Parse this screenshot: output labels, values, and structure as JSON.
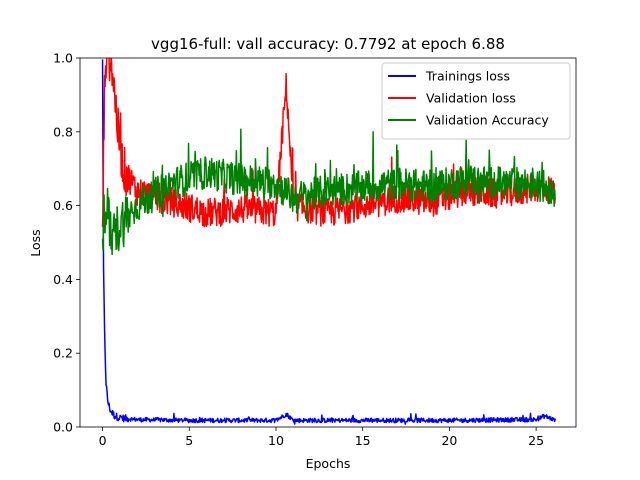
{
  "chart_data": {
    "type": "line",
    "title": "vgg16-full: vall accuracy: 0.7792 at epoch 6.88",
    "xlabel": "Epochs",
    "ylabel": "Loss",
    "xlim": [
      -1.3,
      27.3
    ],
    "ylim": [
      0.0,
      1.0
    ],
    "xticks": [
      0,
      5,
      10,
      15,
      20,
      25
    ],
    "yticks": [
      0.0,
      0.2,
      0.4,
      0.6,
      0.8,
      1.0
    ],
    "xtick_labels": [
      "0",
      "5",
      "10",
      "15",
      "20",
      "25"
    ],
    "ytick_labels": [
      "0.0",
      "0.2",
      "0.4",
      "0.6",
      "0.8",
      "1.0"
    ],
    "grid": false,
    "legend_position": "top-right",
    "x_max": 26.1,
    "series": [
      {
        "name": "Trainings loss",
        "color": "#0000ff",
        "keypoints": [
          [
            0.0,
            1.0
          ],
          [
            0.05,
            0.45
          ],
          [
            0.12,
            0.25
          ],
          [
            0.2,
            0.12
          ],
          [
            0.3,
            0.07
          ],
          [
            0.45,
            0.045
          ],
          [
            0.7,
            0.03
          ],
          [
            1.0,
            0.025
          ],
          [
            2.0,
            0.02
          ],
          [
            5.0,
            0.018
          ],
          [
            10.0,
            0.018
          ],
          [
            10.6,
            0.035
          ],
          [
            11.0,
            0.018
          ],
          [
            15.0,
            0.018
          ],
          [
            20.0,
            0.018
          ],
          [
            25.0,
            0.02
          ],
          [
            25.5,
            0.03
          ],
          [
            26.1,
            0.018
          ]
        ],
        "noise": 0.006
      },
      {
        "name": "Validation loss",
        "color": "#ff0000",
        "keypoints": [
          [
            0.0,
            0.55
          ],
          [
            0.15,
            1.0
          ],
          [
            0.5,
            1.0
          ],
          [
            0.9,
            0.8
          ],
          [
            1.2,
            0.7
          ],
          [
            2.0,
            0.64
          ],
          [
            4.0,
            0.61
          ],
          [
            6.0,
            0.58
          ],
          [
            8.0,
            0.59
          ],
          [
            10.0,
            0.58
          ],
          [
            10.6,
            0.93
          ],
          [
            11.0,
            0.6
          ],
          [
            13.0,
            0.58
          ],
          [
            15.0,
            0.6
          ],
          [
            17.0,
            0.62
          ],
          [
            19.0,
            0.61
          ],
          [
            21.0,
            0.64
          ],
          [
            23.0,
            0.63
          ],
          [
            25.0,
            0.65
          ],
          [
            26.1,
            0.64
          ]
        ],
        "noise": 0.04
      },
      {
        "name": "Validation Accuracy",
        "color": "#008000",
        "keypoints": [
          [
            0.0,
            0.52
          ],
          [
            0.2,
            0.62
          ],
          [
            0.5,
            0.5
          ],
          [
            1.0,
            0.55
          ],
          [
            2.0,
            0.6
          ],
          [
            4.0,
            0.66
          ],
          [
            6.0,
            0.69
          ],
          [
            8.0,
            0.67
          ],
          [
            10.0,
            0.66
          ],
          [
            11.0,
            0.62
          ],
          [
            13.0,
            0.64
          ],
          [
            15.0,
            0.65
          ],
          [
            17.0,
            0.66
          ],
          [
            19.0,
            0.65
          ],
          [
            21.0,
            0.67
          ],
          [
            23.0,
            0.66
          ],
          [
            25.0,
            0.66
          ],
          [
            26.1,
            0.64
          ]
        ],
        "noise": 0.045
      }
    ]
  }
}
